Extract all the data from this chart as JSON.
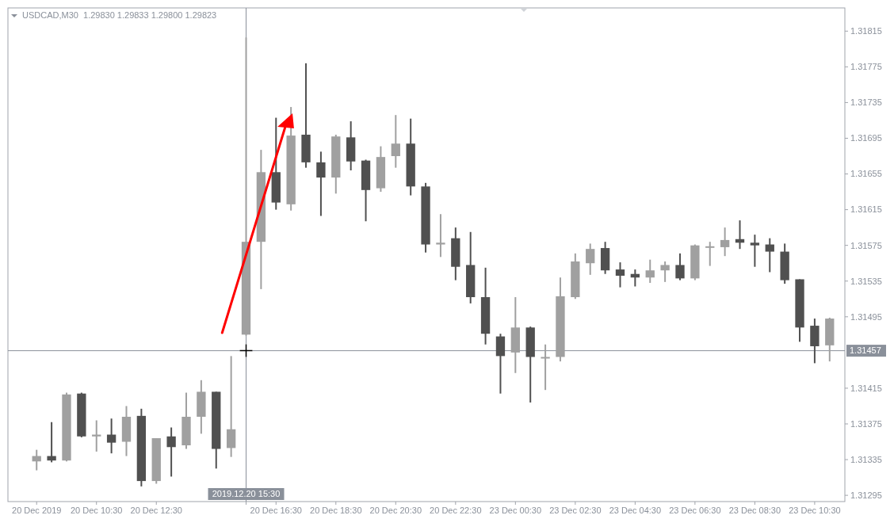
{
  "chart_data": {
    "type": "candlestick",
    "title": "USDCAD,M30  1.29830 1.29833 1.29800 1.29823",
    "categories": [
      "20 Dec 2019",
      null,
      null,
      null,
      "20 Dec 10:30",
      null,
      null,
      null,
      "20 Dec 12:30",
      null,
      null,
      null,
      null,
      null,
      "2019.12.20 15:30",
      null,
      "20 Dec 16:30",
      null,
      null,
      null,
      "20 Dec 18:30",
      null,
      null,
      null,
      "20 Dec 20:30",
      null,
      null,
      null,
      "20 Dec 22:30",
      null,
      null,
      null,
      "23 Dec 00:30",
      null,
      null,
      null,
      "23 Dec 02:30",
      null,
      null,
      null,
      "23 Dec 04:30",
      null,
      null,
      null,
      "23 Dec 06:30",
      null,
      null,
      null,
      "23 Dec 08:30",
      null,
      null,
      null,
      "23 Dec 10:30",
      null
    ],
    "ohlc": [
      [
        1.31333,
        1.31346,
        1.31323,
        1.31339
      ],
      [
        1.31339,
        1.31377,
        1.31332,
        1.31334
      ],
      [
        1.31334,
        1.3141,
        1.31333,
        1.31408
      ],
      [
        1.31409,
        1.3141,
        1.3136,
        1.31361
      ],
      [
        1.31361,
        1.31379,
        1.31344,
        1.31363
      ],
      [
        1.31363,
        1.31381,
        1.31342,
        1.31354
      ],
      [
        1.31355,
        1.31395,
        1.31339,
        1.31383
      ],
      [
        1.31384,
        1.31392,
        1.31305,
        1.31311
      ],
      [
        1.31311,
        1.31359,
        1.31308,
        1.31359
      ],
      [
        1.31361,
        1.31371,
        1.31316,
        1.31349
      ],
      [
        1.31351,
        1.3141,
        1.31347,
        1.31383
      ],
      [
        1.31383,
        1.31424,
        1.31364,
        1.31411
      ],
      [
        1.31411,
        1.31411,
        1.31325,
        1.31347
      ],
      [
        1.31348,
        1.31451,
        1.31338,
        1.31369
      ],
      [
        1.31475,
        1.31808,
        1.31474,
        1.31579
      ],
      [
        1.31579,
        1.31682,
        1.31526,
        1.31657
      ],
      [
        1.31657,
        1.31718,
        1.31615,
        1.31623
      ],
      [
        1.31621,
        1.3173,
        1.31614,
        1.31698
      ],
      [
        1.31699,
        1.31779,
        1.31662,
        1.31668
      ],
      [
        1.31668,
        1.3168,
        1.31608,
        1.31651
      ],
      [
        1.31651,
        1.31699,
        1.31633,
        1.31697
      ],
      [
        1.31696,
        1.31714,
        1.31659,
        1.31669
      ],
      [
        1.3167,
        1.31671,
        1.31602,
        1.31637
      ],
      [
        1.31639,
        1.31686,
        1.31635,
        1.31674
      ],
      [
        1.31675,
        1.31721,
        1.31662,
        1.31689
      ],
      [
        1.31689,
        1.31717,
        1.31631,
        1.31641
      ],
      [
        1.31641,
        1.31645,
        1.31567,
        1.31576
      ],
      [
        1.31576,
        1.3161,
        1.31562,
        1.31578
      ],
      [
        1.31583,
        1.31595,
        1.31536,
        1.31551
      ],
      [
        1.31553,
        1.3159,
        1.3151,
        1.31517
      ],
      [
        1.31517,
        1.3155,
        1.31464,
        1.31476
      ],
      [
        1.31473,
        1.31476,
        1.31409,
        1.31451
      ],
      [
        1.31455,
        1.31517,
        1.31432,
        1.31483
      ],
      [
        1.31483,
        1.31484,
        1.31399,
        1.3145
      ],
      [
        1.31449,
        1.31464,
        1.31413,
        1.3145
      ],
      [
        1.3145,
        1.31539,
        1.31445,
        1.31518
      ],
      [
        1.31517,
        1.31566,
        1.31515,
        1.31557
      ],
      [
        1.31555,
        1.31577,
        1.31542,
        1.31571
      ],
      [
        1.31572,
        1.31579,
        1.31543,
        1.31547
      ],
      [
        1.31548,
        1.31556,
        1.31528,
        1.31541
      ],
      [
        1.31543,
        1.31548,
        1.31529,
        1.31539
      ],
      [
        1.31539,
        1.31559,
        1.31533,
        1.31547
      ],
      [
        1.31547,
        1.31557,
        1.31534,
        1.31553
      ],
      [
        1.31553,
        1.31566,
        1.31536,
        1.31538
      ],
      [
        1.31538,
        1.31576,
        1.31536,
        1.31575
      ],
      [
        1.31573,
        1.31579,
        1.31552,
        1.31574
      ],
      [
        1.31573,
        1.31595,
        1.31563,
        1.31581
      ],
      [
        1.31582,
        1.31603,
        1.31571,
        1.31578
      ],
      [
        1.31578,
        1.31587,
        1.31551,
        1.31575
      ],
      [
        1.31576,
        1.31583,
        1.31545,
        1.31568
      ],
      [
        1.31568,
        1.31577,
        1.31532,
        1.31536
      ],
      [
        1.31537,
        1.31537,
        1.31467,
        1.31483
      ],
      [
        1.31485,
        1.31493,
        1.31443,
        1.31462
      ],
      [
        1.31463,
        1.31494,
        1.31445,
        1.31493
      ]
    ],
    "colors": [
      "#a0a0a0",
      "#505050",
      "#a0a0a0",
      "#505050",
      "#a0a0a0",
      "#505050",
      "#a0a0a0",
      "#505050",
      "#a0a0a0",
      "#505050",
      "#a0a0a0",
      "#a0a0a0",
      "#505050",
      "#a0a0a0",
      "#a0a0a0",
      "#a0a0a0",
      "#505050",
      "#a0a0a0",
      "#505050",
      "#505050",
      "#a0a0a0",
      "#505050",
      "#505050",
      "#a0a0a0",
      "#a0a0a0",
      "#505050",
      "#505050",
      "#a0a0a0",
      "#505050",
      "#505050",
      "#505050",
      "#505050",
      "#a0a0a0",
      "#505050",
      "#a0a0a0",
      "#a0a0a0",
      "#a0a0a0",
      "#a0a0a0",
      "#505050",
      "#505050",
      "#505050",
      "#a0a0a0",
      "#a0a0a0",
      "#505050",
      "#a0a0a0",
      "#a0a0a0",
      "#a0a0a0",
      "#505050",
      "#505050",
      "#505050",
      "#505050",
      "#505050",
      "#505050",
      "#a0a0a0"
    ],
    "ylim": [
      1.31288,
      1.31841
    ],
    "yticks": [
      1.31815,
      1.31775,
      1.31735,
      1.31695,
      1.31655,
      1.31615,
      1.31575,
      1.31535,
      1.31495,
      1.31415,
      1.31375,
      1.31335,
      1.31295
    ],
    "ref_lines": [
      {
        "axis": "y",
        "value": 1.31457,
        "label": "1.31457",
        "color": "#8a909a"
      },
      {
        "axis": "x",
        "value": "2019.12.20 15:30",
        "color": "#8a909a"
      }
    ]
  }
}
